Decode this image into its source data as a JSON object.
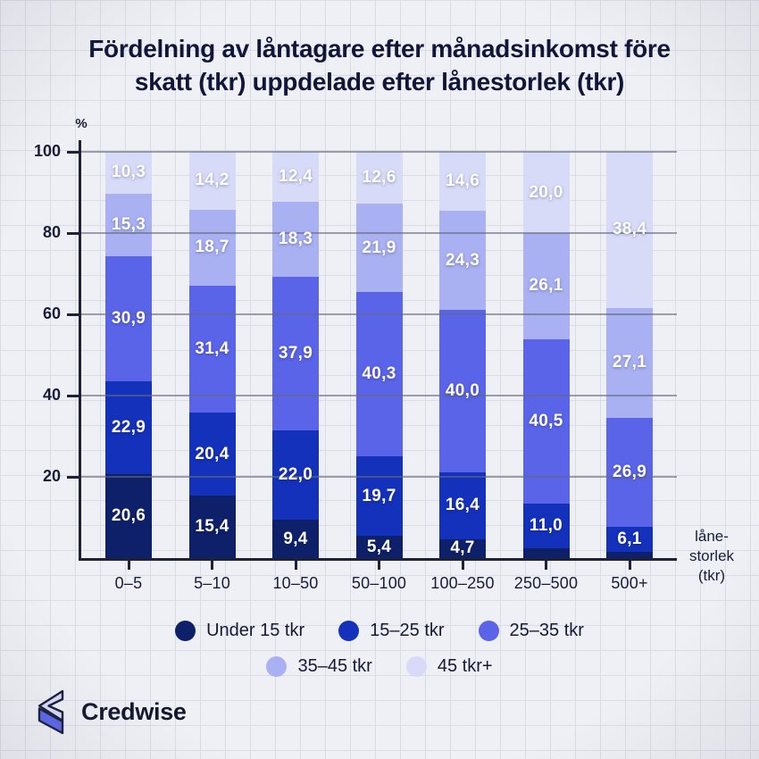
{
  "header": {
    "title": "Fördelning av låntagare efter månadsinkomst före skatt (tkr) uppdelade efter lånestorlek (tkr)",
    "title_lines": [
      "Fördelning av låntagare efter månadsinkomst före",
      "skatt (tkr) uppdelade efter lånestorlek (tkr)"
    ]
  },
  "brand": {
    "name": "Credwise"
  },
  "chart_data": {
    "type": "bar",
    "stacked": true,
    "title": "Fördelning av låntagare efter månadsinkomst före skatt (tkr) uppdelade efter lånestorlek (tkr)",
    "unit": "%",
    "categories": [
      "0–5",
      "5–10",
      "10–50",
      "50–100",
      "100–250",
      "250–500",
      "500+"
    ],
    "x_axis_title": "lånestorlek (tkr)",
    "x_axis_title_lines": [
      "låne-",
      "storlek",
      "(tkr)"
    ],
    "y_ticks": [
      20,
      40,
      60,
      80,
      100
    ],
    "ylim": [
      0,
      100
    ],
    "grid": true,
    "value_label_decimal_separator": ",",
    "value_label_min": 3,
    "series": [
      {
        "name": "Under 15 tkr",
        "color": "#0e2069",
        "values": [
          20.6,
          15.4,
          9.4,
          5.4,
          4.7,
          2.4,
          1.5
        ]
      },
      {
        "name": "15–25 tkr",
        "color": "#1431bb",
        "values": [
          22.9,
          20.4,
          22.0,
          19.7,
          16.4,
          11.0,
          6.1
        ]
      },
      {
        "name": "25–35 tkr",
        "color": "#5a64e8",
        "values": [
          30.9,
          31.4,
          37.9,
          40.3,
          40.0,
          40.5,
          26.9
        ]
      },
      {
        "name": "35–45 tkr",
        "color": "#a9b1f3",
        "values": [
          15.3,
          18.7,
          18.3,
          21.9,
          24.3,
          26.1,
          27.1
        ]
      },
      {
        "name": "45 tkr+",
        "color": "#d8dbf8",
        "values": [
          10.3,
          14.2,
          12.4,
          12.6,
          14.6,
          20.0,
          38.4
        ]
      }
    ],
    "legend_rows": [
      [
        "Under 15 tkr",
        "15–25 tkr",
        "25–35 tkr"
      ],
      [
        "35–45 tkr",
        "45 tkr+"
      ]
    ],
    "legend_position": "bottom"
  }
}
